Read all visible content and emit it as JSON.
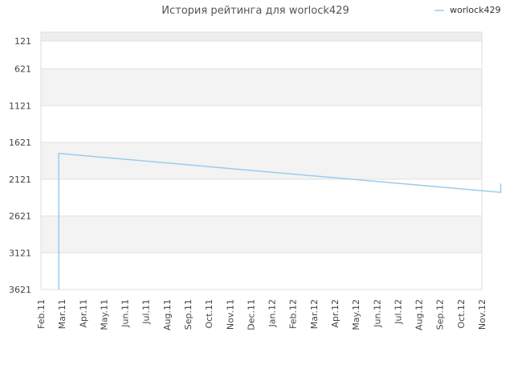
{
  "chart_data": {
    "type": "line",
    "title": "История рейтинга для worlock429",
    "xlabel": "",
    "ylabel": "",
    "y_reversed": true,
    "ylim": [
      121,
      3621
    ],
    "yticks": [
      "121",
      "621",
      "1121",
      "1621",
      "2121",
      "2621",
      "3121",
      "3621"
    ],
    "xticks": [
      "Feb.11",
      "Mar.11",
      "Apr.11",
      "May.11",
      "Jun.11",
      "Jul.11",
      "Aug.11",
      "Sep.11",
      "Oct.11",
      "Nov.11",
      "Dec.11",
      "Jan.12",
      "Feb.12",
      "Mar.12",
      "Apr.12",
      "May.12",
      "Jun.12",
      "Jul.12",
      "Aug.12",
      "Sep.12",
      "Oct.12",
      "Nov.12"
    ],
    "legend": {
      "position": "top-right"
    },
    "series": [
      {
        "name": "worlock429",
        "color": "#99ccee",
        "points": [
          {
            "x": 0.85,
            "y": 3621
          },
          {
            "x": 0.85,
            "y": 1770
          },
          {
            "x": 21.9,
            "y": 2300
          },
          {
            "x": 21.9,
            "y": 2180
          }
        ]
      }
    ],
    "grid": true
  }
}
